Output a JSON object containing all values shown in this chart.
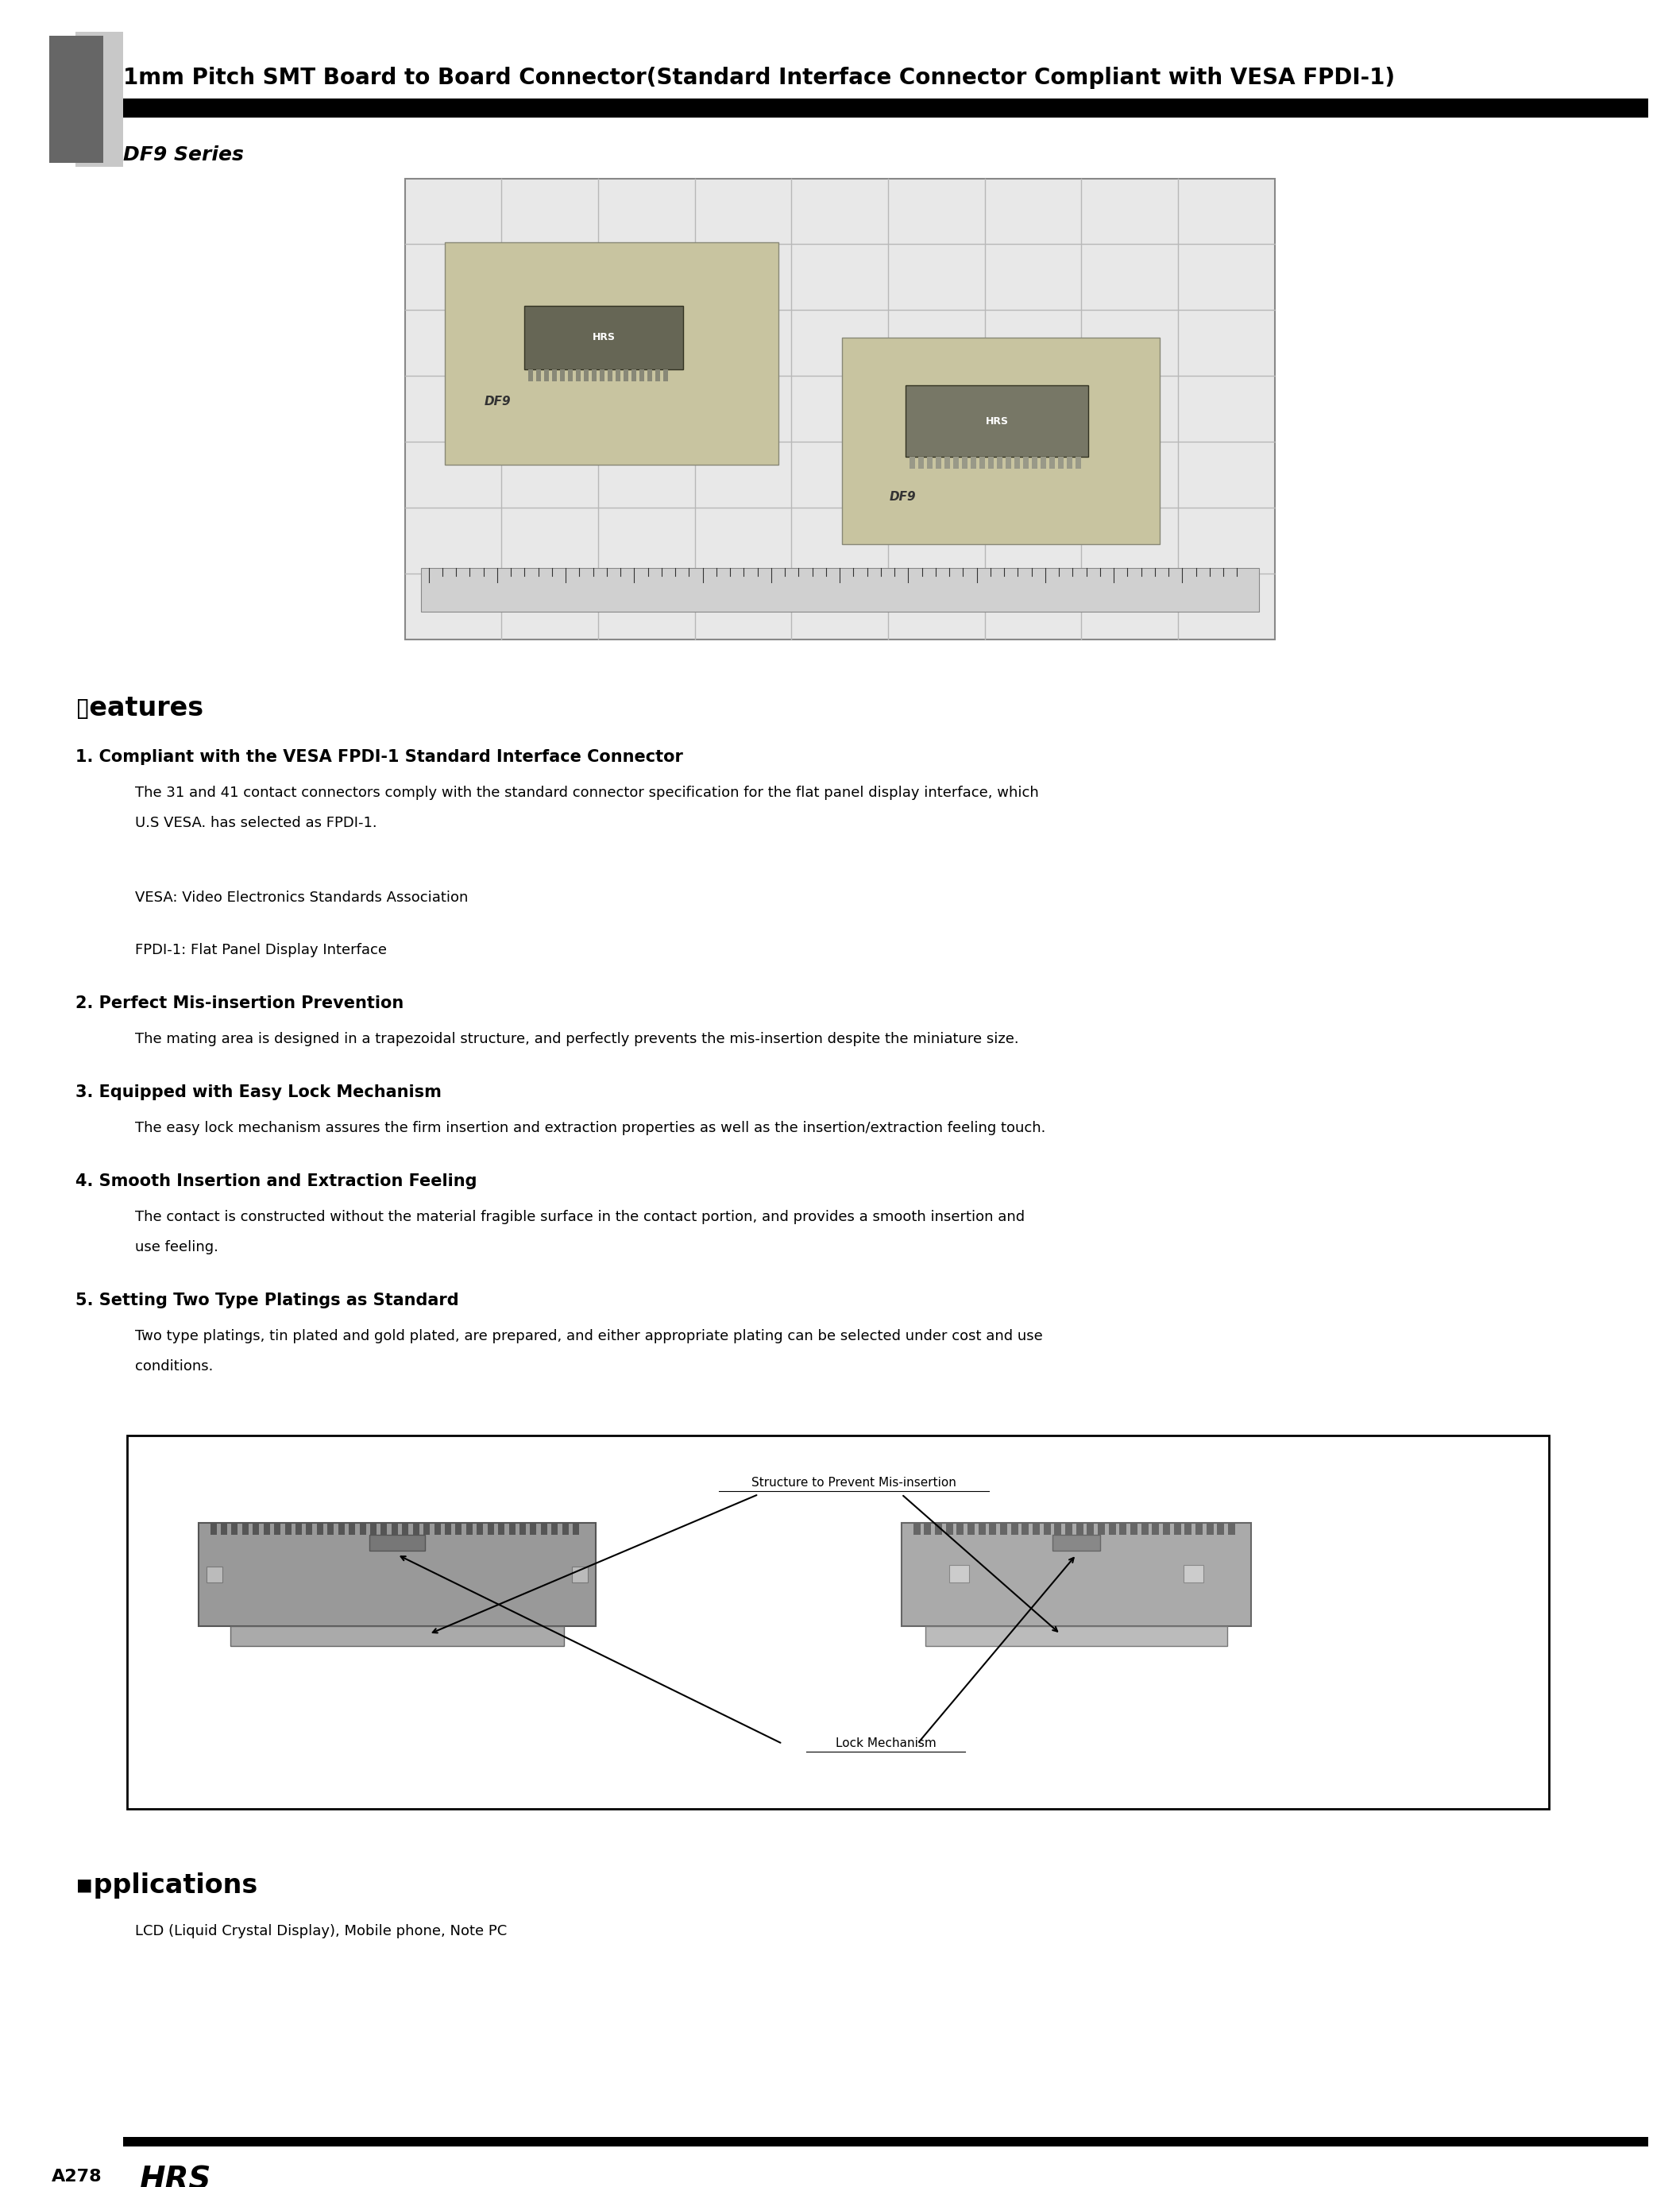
{
  "title_main": "1mm Pitch SMT Board to Board Connector(Standard Interface Connector Compliant with VESA FPDI-1)",
  "title_sub": "DF9 Series",
  "page_label": "A278",
  "bg_color": "#ffffff",
  "features_title": "▯eatures",
  "features": [
    {
      "heading": "1. Compliant with the VESA FPDI-1 Standard Interface Connector",
      "body_lines": [
        "The 31 and 41 contact connectors comply with the standard connector specification for the flat panel display interface, which",
        "U.S VESA. has selected as FPDI-1.",
        "",
        "",
        "VESA: Video Electronics Standards Association",
        "",
        "FPDI-1: Flat Panel Display Interface",
        ""
      ]
    },
    {
      "heading": "2. Perfect Mis-insertion Prevention",
      "body_lines": [
        "The mating area is designed in a trapezoidal structure, and perfectly prevents the mis-insertion despite the miniature size.",
        ""
      ]
    },
    {
      "heading": "3. Equipped with Easy Lock Mechanism",
      "body_lines": [
        "The easy lock mechanism assures the firm insertion and extraction properties as well as the insertion/extraction feeling touch.",
        ""
      ]
    },
    {
      "heading": "4. Smooth Insertion and Extraction Feeling",
      "body_lines": [
        "The contact is constructed without the material fragible surface in the contact portion, and provides a smooth insertion and",
        "use feeling.",
        ""
      ]
    },
    {
      "heading": "5. Setting Two Type Platings as Standard",
      "body_lines": [
        "Two type platings, tin plated and gold plated, are prepared, and either appropriate plating can be selected under cost and use",
        "conditions.",
        ""
      ]
    }
  ],
  "applications_title": "▪pplications",
  "applications_body": "LCD (Liquid Crystal Display), Mobile phone, Note PC",
  "diagram_label_top": "Structure to Prevent Mis-insertion",
  "diagram_label_bottom": "Lock Mechanism",
  "header_title_fontsize": 20,
  "series_fontsize": 18,
  "features_title_fontsize": 24,
  "heading_fontsize": 15,
  "body_fontsize": 13,
  "applications_title_fontsize": 24,
  "applications_body_fontsize": 13,
  "footer_label_fontsize": 16,
  "footer_hrs_fontsize": 28
}
